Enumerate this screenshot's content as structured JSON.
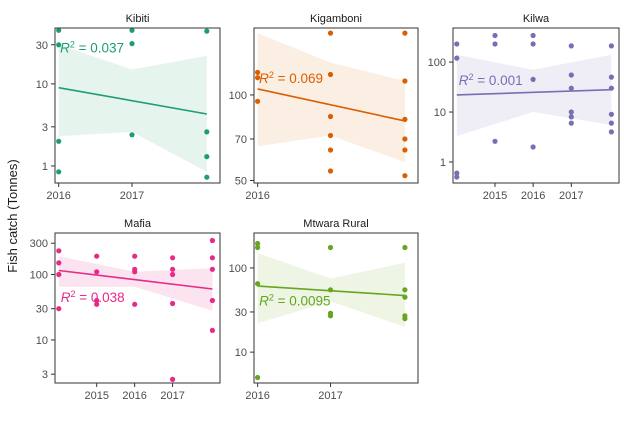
{
  "figure": {
    "ylabel": "Fish catch (Tonnes)"
  },
  "chart_data": [
    {
      "type": "scatter",
      "title": "Kibiti",
      "scale": "log",
      "color": "#1b9e77",
      "band_color": "#e6f4ee",
      "xlim": [
        2015.95,
        2018.2
      ],
      "ylim": [
        0.62,
        48
      ],
      "xticks": [
        2016,
        2017
      ],
      "yticks": [
        1,
        3,
        10,
        30
      ],
      "points": [
        [
          2016,
          45
        ],
        [
          2016,
          30
        ],
        [
          2016,
          2
        ],
        [
          2016,
          0.85
        ],
        [
          2017,
          45
        ],
        [
          2017,
          31
        ],
        [
          2017,
          2.4
        ],
        [
          2018.02,
          44
        ],
        [
          2018.02,
          2.6
        ],
        [
          2018.02,
          1.3
        ],
        [
          2018.02,
          0.73
        ]
      ],
      "trend": {
        "x": [
          2016,
          2018.02
        ],
        "y": [
          9.0,
          4.3
        ]
      },
      "band_upper": [
        [
          2016,
          30
        ],
        [
          2017,
          15
        ],
        [
          2018.02,
          22
        ]
      ],
      "band_lower": [
        [
          2016,
          2.3
        ],
        [
          2017,
          2.6
        ],
        [
          2018.02,
          0.85
        ]
      ],
      "r2_label": "= 0.037",
      "r2_pos": [
        2016.02,
        24
      ]
    },
    {
      "type": "scatter",
      "title": "Kigamboni",
      "scale": "log",
      "color": "#d95f02",
      "band_color": "#fbeee2",
      "xlim": [
        2015.95,
        2018.2
      ],
      "ylim": [
        49,
        172
      ],
      "xticks": [
        2016
      ],
      "yticks": [
        50,
        70,
        100
      ],
      "points": [
        [
          2016,
          120
        ],
        [
          2016,
          115
        ],
        [
          2016,
          95
        ],
        [
          2017,
          165
        ],
        [
          2017,
          118
        ],
        [
          2017,
          84
        ],
        [
          2017,
          72
        ],
        [
          2017,
          64
        ],
        [
          2017,
          54
        ],
        [
          2018.02,
          165
        ],
        [
          2018.02,
          112
        ],
        [
          2018.02,
          82
        ],
        [
          2018.02,
          70
        ],
        [
          2018.02,
          64
        ],
        [
          2018.02,
          52
        ]
      ],
      "trend": {
        "x": [
          2016,
          2018.02
        ],
        "y": [
          105,
          81
        ]
      },
      "band_upper": [
        [
          2016,
          165
        ],
        [
          2017,
          130
        ],
        [
          2018.02,
          112
        ]
      ],
      "band_lower": [
        [
          2016,
          66
        ],
        [
          2017,
          72
        ],
        [
          2018.02,
          58
        ]
      ],
      "r2_label": "= 0.069",
      "r2_pos": [
        2016.02,
        110
      ]
    },
    {
      "type": "scatter",
      "title": "Kilwa",
      "scale": "log",
      "color": "#7570b3",
      "band_color": "#efeef7",
      "xlim": [
        2013.9,
        2018.25
      ],
      "ylim": [
        0.38,
        480
      ],
      "xticks": [
        2015,
        2016,
        2017
      ],
      "yticks": [
        1,
        10,
        100
      ],
      "points": [
        [
          2014,
          230
        ],
        [
          2014,
          120
        ],
        [
          2014,
          0.6
        ],
        [
          2014,
          0.5
        ],
        [
          2015,
          340
        ],
        [
          2015,
          230
        ],
        [
          2015,
          2.6
        ],
        [
          2016,
          340
        ],
        [
          2016,
          230
        ],
        [
          2016,
          45
        ],
        [
          2016,
          2
        ],
        [
          2017,
          210
        ],
        [
          2017,
          55
        ],
        [
          2017,
          30
        ],
        [
          2017,
          10
        ],
        [
          2017,
          8
        ],
        [
          2017,
          6
        ],
        [
          2018.05,
          210
        ],
        [
          2018.05,
          50
        ],
        [
          2018.05,
          30
        ],
        [
          2018.05,
          9
        ],
        [
          2018.05,
          6
        ],
        [
          2018.05,
          4
        ]
      ],
      "trend": {
        "x": [
          2014,
          2018.05
        ],
        "y": [
          22,
          28
        ]
      },
      "band_upper": [
        [
          2014,
          140
        ],
        [
          2016,
          70
        ],
        [
          2018.05,
          140
        ]
      ],
      "band_lower": [
        [
          2014,
          3.3
        ],
        [
          2016,
          10
        ],
        [
          2018.05,
          5.5
        ]
      ],
      "r2_label": "= 0.001",
      "r2_pos": [
        2014.05,
        35
      ]
    },
    {
      "type": "scatter",
      "title": "Mafia",
      "scale": "log",
      "color": "#e7298a",
      "band_color": "#fbe3ef",
      "xlim": [
        2013.9,
        2018.25
      ],
      "ylim": [
        2.2,
        430
      ],
      "xticks": [
        2015,
        2016,
        2017
      ],
      "yticks": [
        3,
        10,
        30,
        100,
        300
      ],
      "points": [
        [
          2014,
          230
        ],
        [
          2014,
          150
        ],
        [
          2014,
          100
        ],
        [
          2014,
          30
        ],
        [
          2015,
          190
        ],
        [
          2015,
          110
        ],
        [
          2015,
          40
        ],
        [
          2015,
          35
        ],
        [
          2016,
          190
        ],
        [
          2016,
          120
        ],
        [
          2016,
          110
        ],
        [
          2016,
          35
        ],
        [
          2017,
          180
        ],
        [
          2017,
          120
        ],
        [
          2017,
          100
        ],
        [
          2017,
          36
        ],
        [
          2017,
          2.5
        ],
        [
          2018.05,
          330
        ],
        [
          2018.05,
          180
        ],
        [
          2018.05,
          120
        ],
        [
          2018.05,
          40
        ],
        [
          2018.05,
          14
        ]
      ],
      "trend": {
        "x": [
          2014,
          2018.05
        ],
        "y": [
          115,
          60
        ]
      },
      "band_upper": [
        [
          2014,
          190
        ],
        [
          2016,
          110
        ],
        [
          2018.05,
          125
        ]
      ],
      "band_lower": [
        [
          2014,
          65
        ],
        [
          2016,
          65
        ],
        [
          2018.05,
          28
        ]
      ],
      "r2_label": "= 0.038",
      "r2_pos": [
        2014.05,
        38
      ]
    },
    {
      "type": "scatter",
      "title": "Mtwara Rural",
      "scale": "log",
      "color": "#66a61e",
      "band_color": "#eef5e4",
      "xlim": [
        2015.95,
        2018.2
      ],
      "ylim": [
        4.3,
        260
      ],
      "xticks": [
        2016,
        2017
      ],
      "yticks": [
        10,
        30,
        100
      ],
      "points": [
        [
          2016,
          195
        ],
        [
          2016,
          175
        ],
        [
          2016,
          65
        ],
        [
          2016,
          5
        ],
        [
          2017,
          175
        ],
        [
          2017,
          55
        ],
        [
          2017,
          29
        ],
        [
          2017,
          27
        ],
        [
          2018.02,
          175
        ],
        [
          2018.02,
          55
        ],
        [
          2018.02,
          45
        ],
        [
          2018.02,
          27
        ],
        [
          2018.02,
          25
        ]
      ],
      "trend": {
        "x": [
          2016,
          2018.02
        ],
        "y": [
          61,
          47
        ]
      },
      "band_upper": [
        [
          2016,
          150
        ],
        [
          2017,
          75
        ],
        [
          2018.02,
          115
        ]
      ],
      "band_lower": [
        [
          2016,
          22
        ],
        [
          2017,
          40
        ],
        [
          2018.02,
          20
        ]
      ],
      "r2_label": "= 0.0095",
      "r2_pos": [
        2016.02,
        36
      ]
    }
  ]
}
